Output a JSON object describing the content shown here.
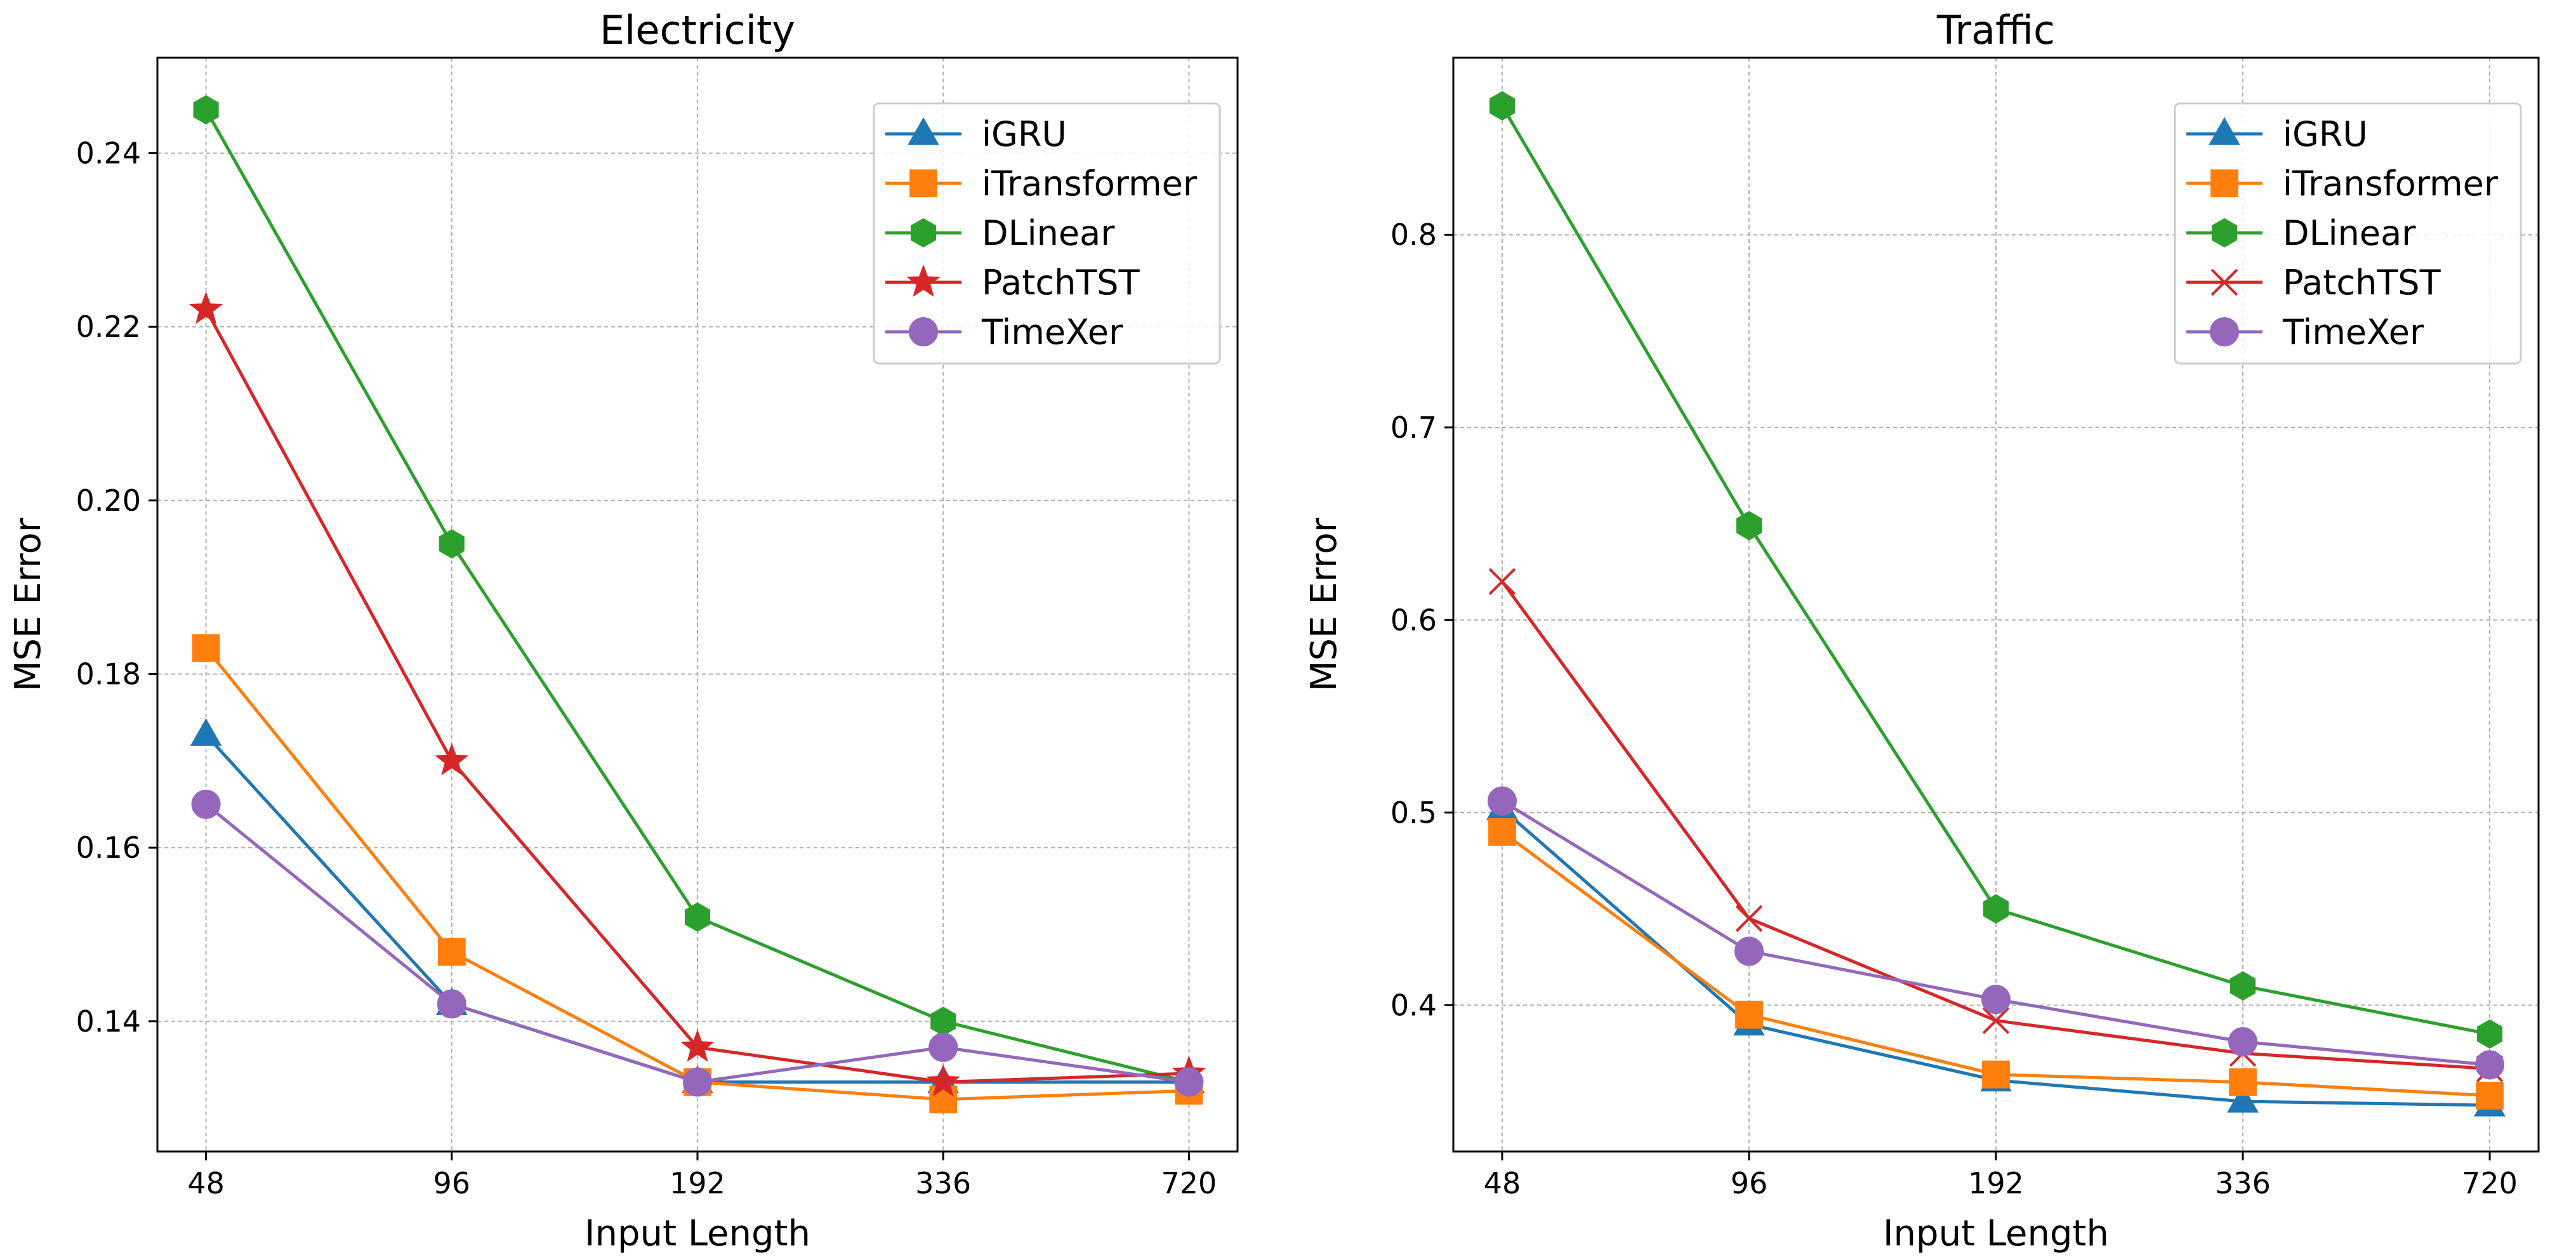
{
  "chart_data": [
    {
      "type": "line",
      "title": "Electricity",
      "xlabel": "Input Length",
      "ylabel": "MSE Error",
      "categories": [
        "48",
        "96",
        "192",
        "336",
        "720"
      ],
      "ylim": [
        0.125,
        0.251
      ],
      "yticks": [
        0.14,
        0.16,
        0.18,
        0.2,
        0.22,
        0.24
      ],
      "ytick_labels": [
        "0.14",
        "0.16",
        "0.18",
        "0.20",
        "0.22",
        "0.24"
      ],
      "grid": true,
      "legend": "top-right",
      "series": [
        {
          "name": "iGRU",
          "values": [
            0.173,
            0.142,
            0.133,
            0.133,
            0.133
          ],
          "color": "#1f77b4",
          "marker": "triangle"
        },
        {
          "name": "iTransformer",
          "values": [
            0.183,
            0.148,
            0.133,
            0.131,
            0.132
          ],
          "color": "#ff7f0e",
          "marker": "square"
        },
        {
          "name": "DLinear",
          "values": [
            0.245,
            0.195,
            0.152,
            0.14,
            0.133
          ],
          "color": "#2ca02c",
          "marker": "hexagon"
        },
        {
          "name": "PatchTST",
          "values": [
            0.222,
            0.17,
            0.137,
            0.133,
            0.134
          ],
          "color": "#d62728",
          "marker": "star"
        },
        {
          "name": "TimeXer",
          "values": [
            0.165,
            0.142,
            0.133,
            0.137,
            0.133
          ],
          "color": "#9467bd",
          "marker": "circle"
        }
      ]
    },
    {
      "type": "line",
      "title": "Traffic",
      "xlabel": "Input Length",
      "ylabel": "MSE Error",
      "categories": [
        "48",
        "96",
        "192",
        "336",
        "720"
      ],
      "ylim": [
        0.324,
        0.892
      ],
      "yticks": [
        0.4,
        0.5,
        0.6,
        0.7,
        0.8
      ],
      "ytick_labels": [
        "0.4",
        "0.5",
        "0.6",
        "0.7",
        "0.8"
      ],
      "grid": true,
      "legend": "top-right",
      "series": [
        {
          "name": "iGRU",
          "values": [
            0.502,
            0.39,
            0.361,
            0.35,
            0.348
          ],
          "color": "#1f77b4",
          "marker": "triangle"
        },
        {
          "name": "iTransformer",
          "values": [
            0.49,
            0.395,
            0.364,
            0.36,
            0.353
          ],
          "color": "#ff7f0e",
          "marker": "square"
        },
        {
          "name": "DLinear",
          "values": [
            0.867,
            0.649,
            0.45,
            0.41,
            0.385
          ],
          "color": "#2ca02c",
          "marker": "hexagon"
        },
        {
          "name": "PatchTST",
          "values": [
            0.62,
            0.445,
            0.392,
            0.375,
            0.367
          ],
          "color": "#d62728",
          "marker": "x"
        },
        {
          "name": "TimeXer",
          "values": [
            0.506,
            0.428,
            0.403,
            0.381,
            0.369
          ],
          "color": "#9467bd",
          "marker": "circle"
        }
      ]
    }
  ]
}
